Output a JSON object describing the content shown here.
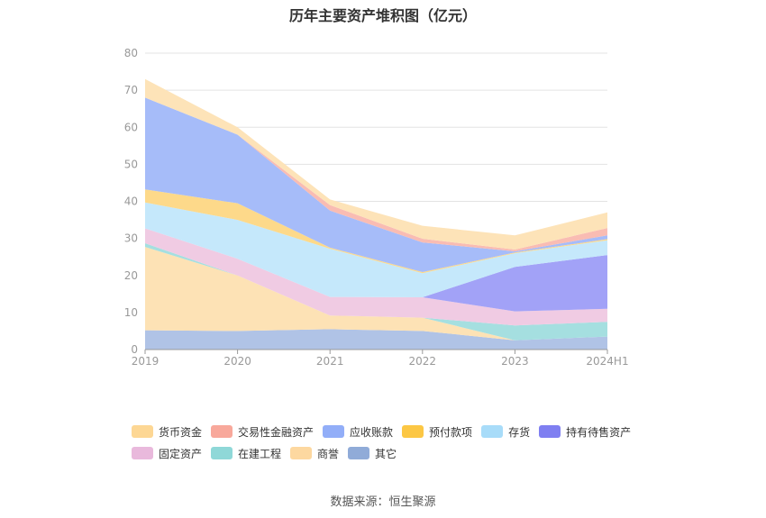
{
  "chart_data": {
    "type": "area",
    "stacked": true,
    "title": "历年主要资产堆积图（亿元）",
    "categories": [
      "2019",
      "2020",
      "2021",
      "2022",
      "2023",
      "2024H1"
    ],
    "ylim": [
      0,
      80
    ],
    "yticks": [
      0,
      10,
      20,
      30,
      40,
      50,
      60,
      70,
      80
    ],
    "grid": true,
    "legend_position": "bottom",
    "series": [
      {
        "name": "其它",
        "color": "#b0c3e6",
        "values": [
          5.2,
          5.0,
          5.5,
          5.0,
          2.5,
          3.5
        ]
      },
      {
        "name": "商誉",
        "color": "#fde2b5",
        "values": [
          22.5,
          15.0,
          3.7,
          3.6,
          0.0,
          0.0
        ]
      },
      {
        "name": "在建工程",
        "color": "#a5dfe0",
        "values": [
          1.0,
          0.0,
          0.0,
          0.0,
          4.0,
          4.0
        ]
      },
      {
        "name": "固定资产",
        "color": "#f0cbe3",
        "values": [
          4.0,
          4.5,
          5.0,
          5.5,
          3.8,
          3.5
        ]
      },
      {
        "name": "持有待售资产",
        "color": "#a2a2f7",
        "values": [
          0.0,
          0.0,
          0.0,
          0.0,
          12.0,
          14.5
        ]
      },
      {
        "name": "存货",
        "color": "#c5e8fb",
        "values": [
          7.0,
          10.5,
          13.0,
          6.5,
          3.7,
          4.0
        ]
      },
      {
        "name": "预付款项",
        "color": "#fdd98a",
        "values": [
          3.5,
          4.5,
          0.3,
          0.3,
          0.2,
          0.3
        ]
      },
      {
        "name": "应收账款",
        "color": "#a6bcf9",
        "values": [
          24.8,
          18.5,
          10.0,
          8.0,
          0.3,
          1.0
        ]
      },
      {
        "name": "交易性金融资产",
        "color": "#f9bcb3",
        "values": [
          0.0,
          0.0,
          1.5,
          1.0,
          0.5,
          2.0
        ]
      },
      {
        "name": "货币资金",
        "color": "#fde3b8",
        "values": [
          5.0,
          2.0,
          1.5,
          3.5,
          3.8,
          4.2
        ]
      }
    ]
  },
  "legend": [
    {
      "label": "货币资金",
      "color": "#fdd794"
    },
    {
      "label": "交易性金融资产",
      "color": "#f8a89b"
    },
    {
      "label": "应收账款",
      "color": "#92aef8"
    },
    {
      "label": "预付款项",
      "color": "#fcc744"
    },
    {
      "label": "存货",
      "color": "#a8dcf9"
    },
    {
      "label": "持有待售资产",
      "color": "#7f7ff1"
    },
    {
      "label": "固定资产",
      "color": "#e9b9dc"
    },
    {
      "label": "在建工程",
      "color": "#8fd8d8"
    },
    {
      "label": "商誉",
      "color": "#fdd8a0"
    },
    {
      "label": "其它",
      "color": "#90abd8"
    }
  ],
  "source": "数据来源：恒生聚源"
}
